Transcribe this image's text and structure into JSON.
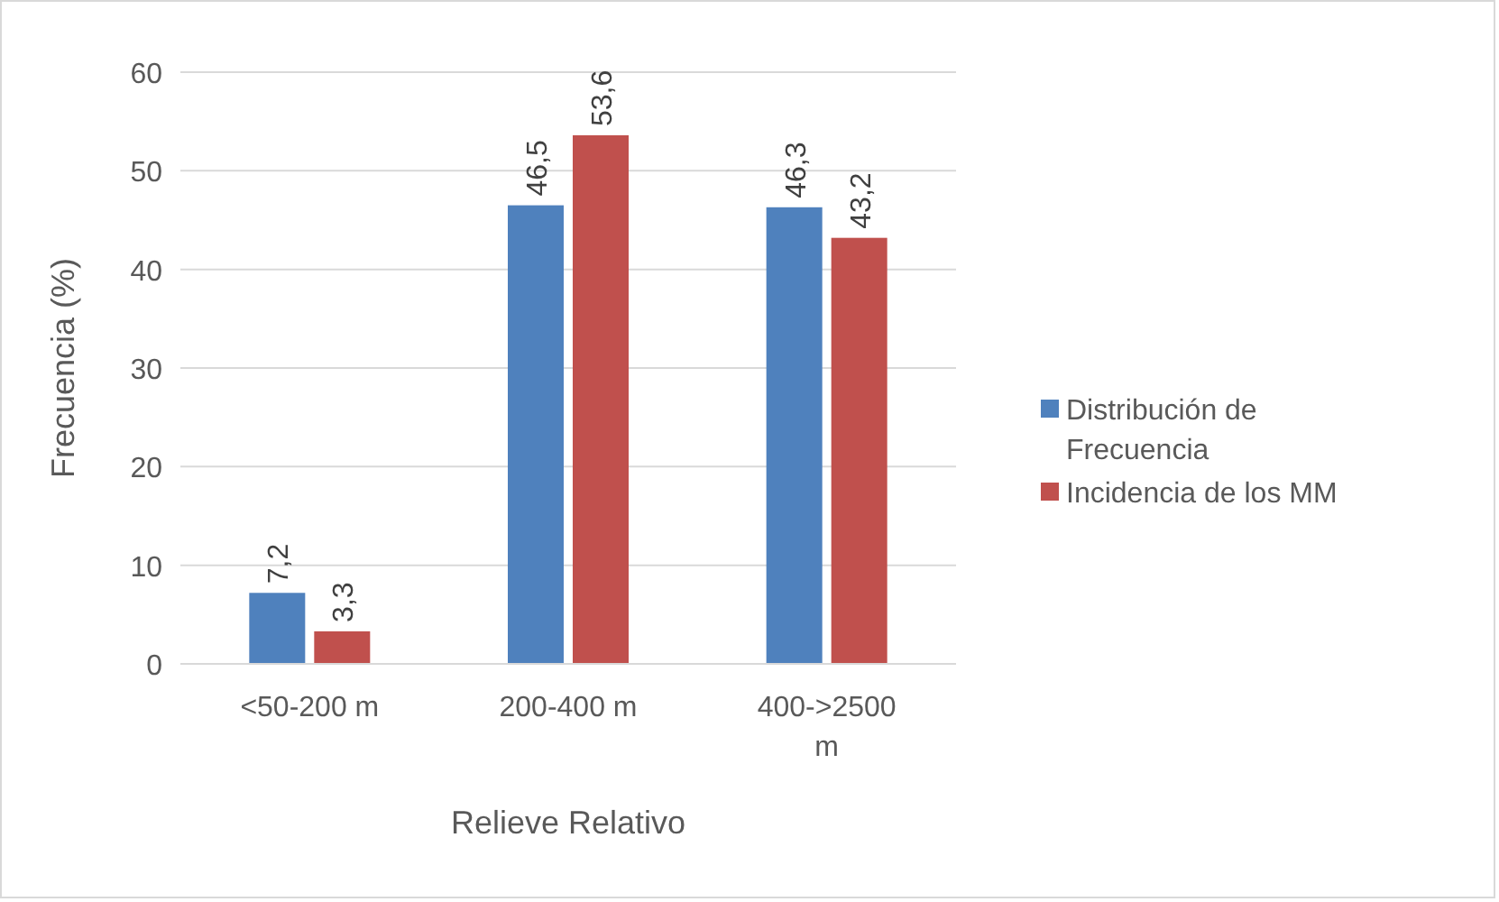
{
  "chart_data": {
    "type": "bar",
    "xlabel": "Relieve Relativo",
    "ylabel": "Frecuencia (%)",
    "categories": [
      "<50-200 m",
      "200-400 m",
      "400->2500 m"
    ],
    "series": [
      {
        "name": "Distribución de Frecuencia",
        "color": "#4f81bd",
        "values": [
          7.2,
          46.5,
          46.3
        ],
        "value_labels": [
          "7,2",
          "46,5",
          "46,3"
        ]
      },
      {
        "name": "Incidencia de los MM",
        "color": "#c0504d",
        "values": [
          3.3,
          53.6,
          43.2
        ],
        "value_labels": [
          "3,3",
          "53,6",
          "43,2"
        ]
      }
    ],
    "ylim": [
      0,
      60
    ],
    "yticks": [
      0,
      10,
      20,
      30,
      40,
      50,
      60
    ],
    "grid": "y",
    "legend": "right"
  }
}
